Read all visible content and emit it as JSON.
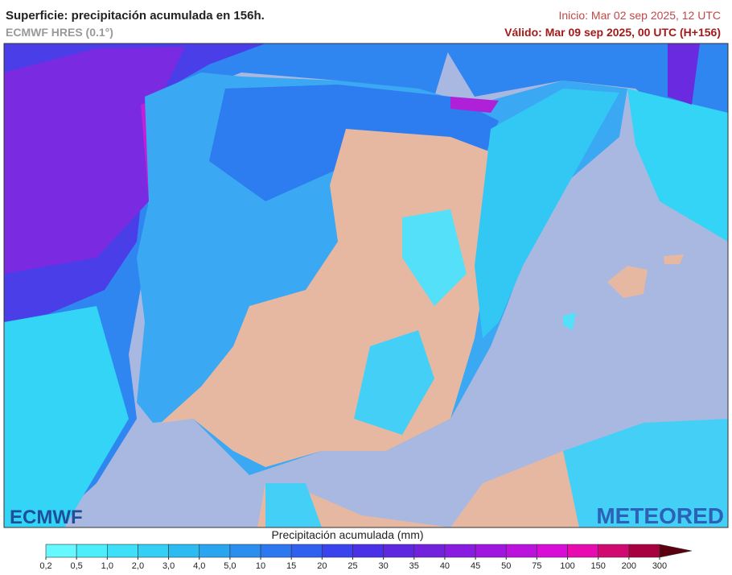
{
  "header": {
    "title": "Superficie: precipitación acumulada en 156h.",
    "subtitle": "ECMWF HRES (0.1°)",
    "init": "Inicio: Mar 02 sep 2025, 12 UTC",
    "valid": "Válido: Mar 09 sep 2025, 00 UTC (H+156)"
  },
  "logos": {
    "left": "ECMWF",
    "right": "METEORED"
  },
  "legend": {
    "title": "Precipitación acumulada (mm)",
    "ticks": [
      {
        "value": 0.2,
        "label": "0,2"
      },
      {
        "value": 0.5,
        "label": "0,5"
      },
      {
        "value": 1,
        "label": "1,0"
      },
      {
        "value": 2,
        "label": "2,0"
      },
      {
        "value": 3,
        "label": "3,0"
      },
      {
        "value": 4,
        "label": "4,0"
      },
      {
        "value": 5,
        "label": "5,0"
      },
      10,
      15,
      20,
      25,
      30,
      35,
      40,
      45,
      50,
      75,
      100,
      150,
      200,
      300
    ],
    "colors": [
      "#66f8ff",
      "#4deefc",
      "#3de0f8",
      "#33cff4",
      "#2dbcf2",
      "#2aa6f0",
      "#2b8ff0",
      "#2d78f0",
      "#3060f0",
      "#3a44ee",
      "#4a30e6",
      "#5e28e0",
      "#7222dc",
      "#881ce0",
      "#a016e0",
      "#bc12de",
      "#d80ed8",
      "#e80cb0",
      "#d00a70",
      "#a80040"
    ],
    "overflow_color": "#5a0010"
  }
}
